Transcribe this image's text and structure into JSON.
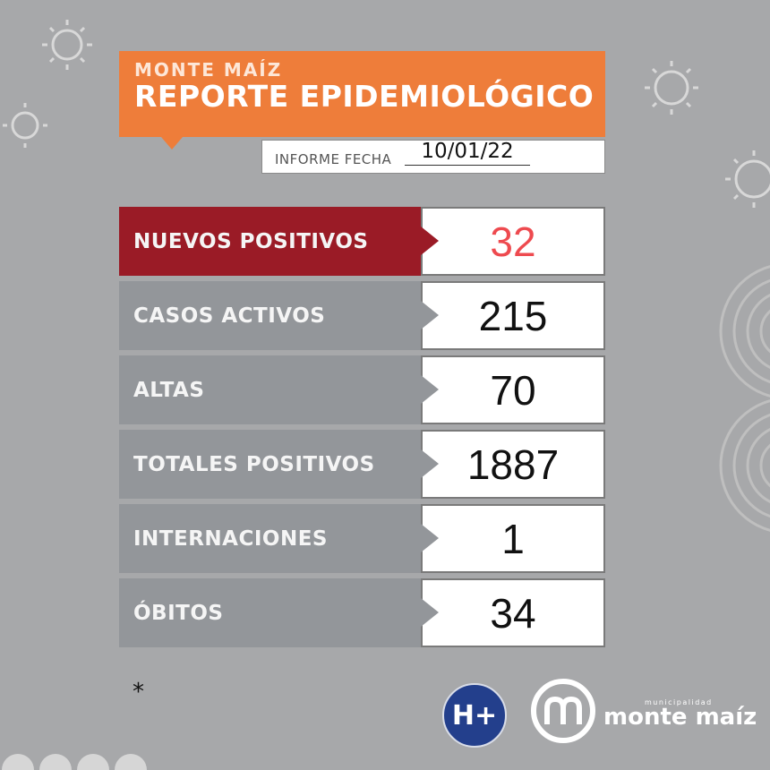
{
  "header": {
    "city": "MONTE MAÍZ",
    "title": "REPORTE EPIDEMIOLÓGICO",
    "date_label": "INFORME FECHA",
    "date_value": "10/01/22"
  },
  "rows": [
    {
      "label": "NUEVOS POSITIVOS",
      "value": "32"
    },
    {
      "label": "CASOS ACTIVOS",
      "value": "215"
    },
    {
      "label": "ALTAS",
      "value": "70"
    },
    {
      "label": "TOTALES POSITIVOS",
      "value": "1887"
    },
    {
      "label": "INTERNACIONES",
      "value": "1"
    },
    {
      "label": "ÓBITOS",
      "value": "34"
    }
  ],
  "footer": {
    "asterisk": "*",
    "hplus_logo": "H+",
    "logo_sub": "municipalidad",
    "logo_main": "monte maíz"
  },
  "colors": {
    "background": "#a7a8aa",
    "header_orange": "#ee7d3a",
    "highlight_red": "#9a1b26",
    "label_gray": "#93969a",
    "highlight_value": "#ee4a4f"
  },
  "icons": [
    "virus-icon",
    "hplus-logo",
    "municipality-logo"
  ]
}
